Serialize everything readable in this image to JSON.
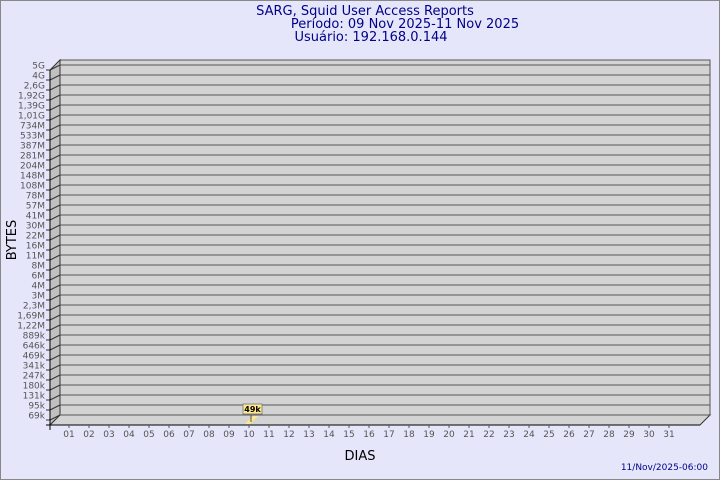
{
  "chart_data": {
    "type": "bar",
    "title": "SARG, Squid User Access Reports",
    "subtitle_period": "Período: 09 Nov 2025-11 Nov 2025",
    "subtitle_user": "Usuário: 192.168.0.144",
    "xlabel": "DIAS",
    "ylabel": "BYTES",
    "y_scale": "log",
    "y_tick_labels": [
      "5G",
      "4G",
      "2,6G",
      "1,92G",
      "1,39G",
      "1,01G",
      "734M",
      "533M",
      "387M",
      "281M",
      "204M",
      "148M",
      "108M",
      "78M",
      "57M",
      "41M",
      "30M",
      "22M",
      "16M",
      "11M",
      "8M",
      "6M",
      "4M",
      "3M",
      "2,3M",
      "1,69M",
      "1,22M",
      "889k",
      "646k",
      "469k",
      "341k",
      "247k",
      "180k",
      "131k",
      "95k",
      "69k"
    ],
    "categories": [
      "01",
      "02",
      "03",
      "04",
      "05",
      "06",
      "07",
      "08",
      "09",
      "10",
      "11",
      "12",
      "13",
      "14",
      "15",
      "16",
      "17",
      "18",
      "19",
      "20",
      "21",
      "22",
      "23",
      "24",
      "25",
      "26",
      "27",
      "28",
      "29",
      "30",
      "31"
    ],
    "bars": [
      {
        "day": "10",
        "value_label": "49k"
      }
    ],
    "grid": true,
    "footer_timestamp": "11/Nov/2025-06:00",
    "colors": {
      "background": "#e6e6fa",
      "wall": "#d3d3d3",
      "title": "#00008b",
      "bar": "#ffe88a"
    }
  }
}
